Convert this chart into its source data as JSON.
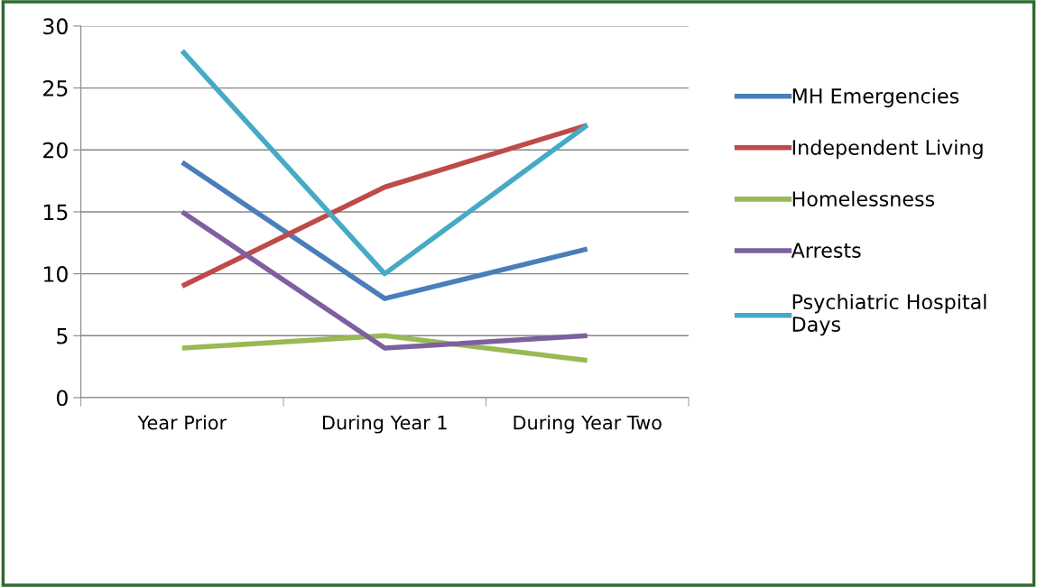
{
  "chart_data": {
    "type": "line",
    "categories": [
      "Year Prior",
      "During Year 1",
      "During Year Two"
    ],
    "series": [
      {
        "name": "MH Emergencies",
        "color": "#4a7ebb",
        "values": [
          19,
          8,
          12
        ]
      },
      {
        "name": "Independent Living",
        "color": "#be4b48",
        "values": [
          9,
          17,
          22
        ]
      },
      {
        "name": "Homelessness",
        "color": "#98b954",
        "values": [
          4,
          5,
          3
        ]
      },
      {
        "name": "Arrests",
        "color": "#7d60a0",
        "values": [
          15,
          4,
          5
        ]
      },
      {
        "name": "Psychiatric Hospital Days",
        "color": "#46aac5",
        "values": [
          28,
          10,
          22
        ]
      }
    ],
    "ylim": [
      0,
      30
    ],
    "yticks": [
      0,
      5,
      10,
      15,
      20,
      25,
      30
    ],
    "grid": "y",
    "legend": "right",
    "marker": "none",
    "line_style": "solid"
  }
}
